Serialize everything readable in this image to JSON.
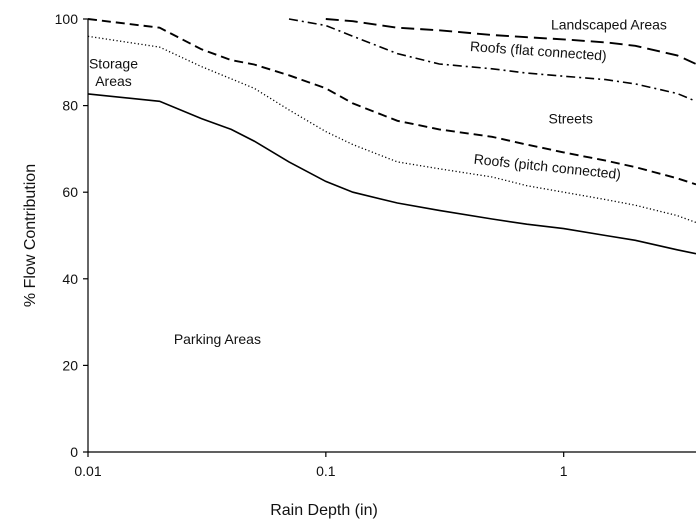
{
  "chart_data": {
    "type": "line",
    "xscale": "log",
    "xlabel": "Rain Depth (in)",
    "ylabel": "% Flow Contribution",
    "xlim": [
      0.01,
      3.6
    ],
    "ylim": [
      0,
      100
    ],
    "xticks": [
      0.01,
      0.1,
      1
    ],
    "xtick_labels": [
      "0.01",
      "0.1",
      "1"
    ],
    "yticks": [
      0,
      20,
      40,
      60,
      80,
      100
    ],
    "ytick_labels": [
      "0",
      "20",
      "40",
      "60",
      "80",
      "100"
    ],
    "grid": false,
    "series": [
      {
        "style": "solid",
        "x": [
          0.01,
          0.02,
          0.03,
          0.04,
          0.05,
          0.07,
          0.1,
          0.13,
          0.2,
          0.3,
          0.5,
          0.7,
          1,
          1.5,
          2,
          3,
          3.6
        ],
        "y": [
          82.7,
          81,
          77,
          74.5,
          71.8,
          67,
          62.5,
          60,
          57.5,
          55.8,
          53.8,
          52.6,
          51.6,
          50,
          48.9,
          46.7,
          45.8
        ]
      },
      {
        "style": "dotted",
        "x": [
          0.01,
          0.02,
          0.03,
          0.05,
          0.07,
          0.1,
          0.13,
          0.2,
          0.3,
          0.5,
          0.7,
          1,
          1.5,
          2,
          3,
          3.6
        ],
        "y": [
          96,
          93.5,
          89,
          84,
          79,
          74,
          71,
          67,
          65.4,
          63.5,
          61.5,
          60,
          58.3,
          57,
          54.6,
          53
        ]
      },
      {
        "style": "dashed",
        "x": [
          0.01,
          0.02,
          0.03,
          0.04,
          0.05,
          0.07,
          0.1,
          0.13,
          0.2,
          0.3,
          0.5,
          0.7,
          1,
          1.5,
          2,
          3,
          3.6
        ],
        "y": [
          100,
          98,
          93,
          90.5,
          89.5,
          87,
          84,
          80.5,
          76.5,
          74.5,
          72.8,
          71,
          69.2,
          67.3,
          65.8,
          63.2,
          61.8
        ]
      },
      {
        "style": "dash-dot",
        "x": [
          0.07,
          0.1,
          0.13,
          0.2,
          0.3,
          0.5,
          0.7,
          1,
          1.5,
          2,
          3,
          3.6
        ],
        "y": [
          100,
          98.5,
          96,
          92,
          89.6,
          88.5,
          87.5,
          86.8,
          86,
          85,
          82.8,
          81
        ]
      },
      {
        "style": "long-dash",
        "x": [
          0.1,
          0.13,
          0.2,
          0.3,
          0.5,
          0.7,
          1,
          1.5,
          2,
          3,
          3.6
        ],
        "y": [
          100,
          99.5,
          98,
          97.4,
          96.3,
          95.8,
          95.3,
          94.6,
          93.8,
          91.6,
          89.6
        ]
      }
    ],
    "annotations": [
      {
        "text": "Storage",
        "x": 0.0128,
        "y": 88.6
      },
      {
        "text": "Areas",
        "x": 0.0128,
        "y": 84.5
      },
      {
        "text": "Landscaped Areas",
        "x": 1.55,
        "y": 97.6
      },
      {
        "text": "Roofs (flat connected)",
        "x": 0.78,
        "y": 91.5,
        "rotate": 4
      },
      {
        "text": "Streets",
        "x": 1.07,
        "y": 75.9
      },
      {
        "text": "Roofs (pitch connected)",
        "x": 0.85,
        "y": 64.8,
        "rotate": 6
      },
      {
        "text": "Parking Areas",
        "x": 0.035,
        "y": 24.9
      }
    ]
  }
}
